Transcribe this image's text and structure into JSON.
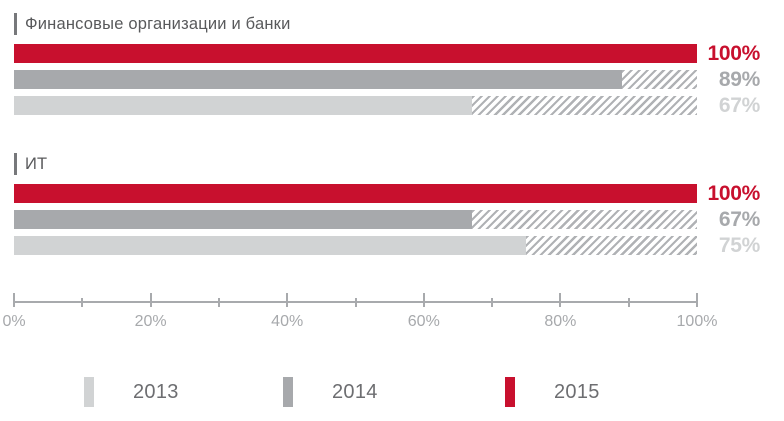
{
  "chart_data": {
    "type": "bar",
    "orientation": "horizontal",
    "value_unit": "%",
    "xlim": [
      0,
      100
    ],
    "x_tick_labels": [
      "0%",
      "20%",
      "40%",
      "60%",
      "80%",
      "100%"
    ],
    "x_major_tick_step": 20,
    "x_minor_tick_step": 10,
    "grid": false,
    "legend_position": "bottom",
    "groups": [
      {
        "label": "Финансовые организации и банки",
        "bars": [
          {
            "series": "2015",
            "value": 100,
            "value_label": "100%"
          },
          {
            "series": "2014",
            "value": 89,
            "value_label": "89%"
          },
          {
            "series": "2013",
            "value": 67,
            "value_label": "67%"
          }
        ]
      },
      {
        "label": "ИТ",
        "bars": [
          {
            "series": "2015",
            "value": 100,
            "value_label": "100%"
          },
          {
            "series": "2014",
            "value": 67,
            "value_label": "67%"
          },
          {
            "series": "2013",
            "value": 75,
            "value_label": "75%"
          }
        ]
      }
    ],
    "legend": [
      {
        "label": "2013",
        "color": "#D1D3D4"
      },
      {
        "label": "2014",
        "color": "#A7A9AC"
      },
      {
        "label": "2015",
        "color": "#C8102E"
      }
    ],
    "series_colors": {
      "2013": "#D1D3D4",
      "2014": "#A7A9AC",
      "2015": "#C8102E"
    },
    "remainder_hatch": {
      "pattern": "diagonal-stripes",
      "color": "#B0B2B5",
      "extends_to_value": 100
    },
    "colors": {
      "accent_red": "#C8102E",
      "axis": "#A8AAAD",
      "axis_label": "#A7A9AC",
      "group_title": "#58595B",
      "legend_label": "#6D6E71"
    }
  }
}
